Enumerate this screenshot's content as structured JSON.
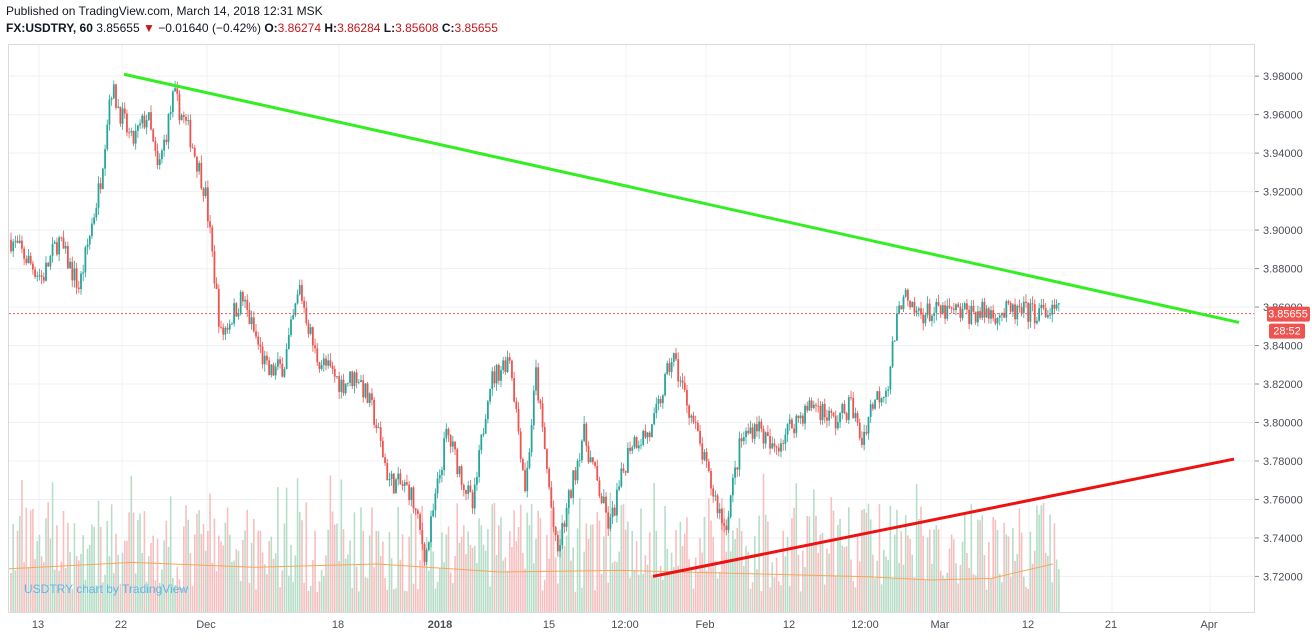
{
  "header": {
    "published": "Published on TradingView.com, March 14, 2018 12:31 MSK",
    "symbol": "FX:USDTRY, 60",
    "last": "3.85655",
    "change_arrow": "▼",
    "change": "−0.01640 (−0.42%)",
    "o_label": "O:",
    "o_value": "3.86274",
    "h_label": "H:",
    "h_value": "3.86284",
    "l_label": "L:",
    "l_value": "3.85608",
    "c_label": "C:",
    "c_value": "3.85655"
  },
  "watermark": "USDTRY chart by TradingView",
  "colors": {
    "up": "#26a69a",
    "down": "#ef5350",
    "wick": "#787b86",
    "resistance_line": "#33ee22",
    "support_line": "#ee1111",
    "volume_ma": "#f5a65b",
    "price_badge": "#ef5350"
  },
  "chart_data": {
    "type": "candlestick",
    "symbol": "FX:USDTRY",
    "interval": "60",
    "y_ticks": [
      "3.98000",
      "3.96000",
      "3.94000",
      "3.92000",
      "3.90000",
      "3.88000",
      "3.86000",
      "3.84000",
      "3.82000",
      "3.80000",
      "3.78000",
      "3.76000",
      "3.74000",
      "3.72000"
    ],
    "ylim": [
      3.7015,
      3.9962
    ],
    "x_ticks": [
      "13",
      "22",
      "Dec",
      "18",
      "2018",
      "15",
      "12:00",
      "Feb",
      "12",
      "12:00",
      "Mar",
      "12",
      "21",
      "Apr"
    ],
    "last_price_label": "3.85655",
    "countdown_label": "28:52",
    "price_path": [
      [
        0,
        3.895
      ],
      [
        0.03,
        3.875
      ],
      [
        0.045,
        3.895
      ],
      [
        0.065,
        3.87
      ],
      [
        0.085,
        3.925
      ],
      [
        0.095,
        3.975
      ],
      [
        0.115,
        3.945
      ],
      [
        0.13,
        3.96
      ],
      [
        0.14,
        3.93
      ],
      [
        0.155,
        3.97
      ],
      [
        0.17,
        3.95
      ],
      [
        0.185,
        3.92
      ],
      [
        0.2,
        3.845
      ],
      [
        0.22,
        3.865
      ],
      [
        0.245,
        3.825
      ],
      [
        0.26,
        3.83
      ],
      [
        0.275,
        3.87
      ],
      [
        0.29,
        3.835
      ],
      [
        0.315,
        3.82
      ],
      [
        0.33,
        3.825
      ],
      [
        0.345,
        3.805
      ],
      [
        0.36,
        3.77
      ],
      [
        0.38,
        3.765
      ],
      [
        0.395,
        3.73
      ],
      [
        0.415,
        3.795
      ],
      [
        0.44,
        3.755
      ],
      [
        0.455,
        3.82
      ],
      [
        0.475,
        3.835
      ],
      [
        0.49,
        3.765
      ],
      [
        0.5,
        3.825
      ],
      [
        0.52,
        3.73
      ],
      [
        0.545,
        3.795
      ],
      [
        0.57,
        3.745
      ],
      [
        0.59,
        3.79
      ],
      [
        0.61,
        3.795
      ],
      [
        0.63,
        3.835
      ],
      [
        0.65,
        3.8
      ],
      [
        0.665,
        3.77
      ],
      [
        0.68,
        3.745
      ],
      [
        0.695,
        3.79
      ],
      [
        0.71,
        3.8
      ],
      [
        0.725,
        3.785
      ],
      [
        0.745,
        3.8
      ],
      [
        0.765,
        3.81
      ],
      [
        0.785,
        3.8
      ],
      [
        0.8,
        3.81
      ],
      [
        0.81,
        3.79
      ],
      [
        0.82,
        3.81
      ],
      [
        0.835,
        3.82
      ],
      [
        0.84,
        3.84
      ],
      [
        0.85,
        3.87
      ],
      [
        0.855,
        3.857
      ]
    ],
    "volume_ma_path": [
      [
        0,
        0.27
      ],
      [
        0.1,
        0.31
      ],
      [
        0.2,
        0.28
      ],
      [
        0.3,
        0.3
      ],
      [
        0.4,
        0.25
      ],
      [
        0.5,
        0.26
      ],
      [
        0.6,
        0.24
      ],
      [
        0.7,
        0.22
      ],
      [
        0.75,
        0.2
      ],
      [
        0.8,
        0.21
      ],
      [
        0.85,
        0.3
      ]
    ],
    "trendlines": [
      {
        "name": "resistance",
        "from": [
          "22",
          3.981
        ],
        "to": [
          "Apr",
          3.852
        ]
      },
      {
        "name": "support",
        "from": [
          "12:00",
          3.72
        ],
        "to": [
          "Apr",
          3.781
        ]
      }
    ]
  }
}
